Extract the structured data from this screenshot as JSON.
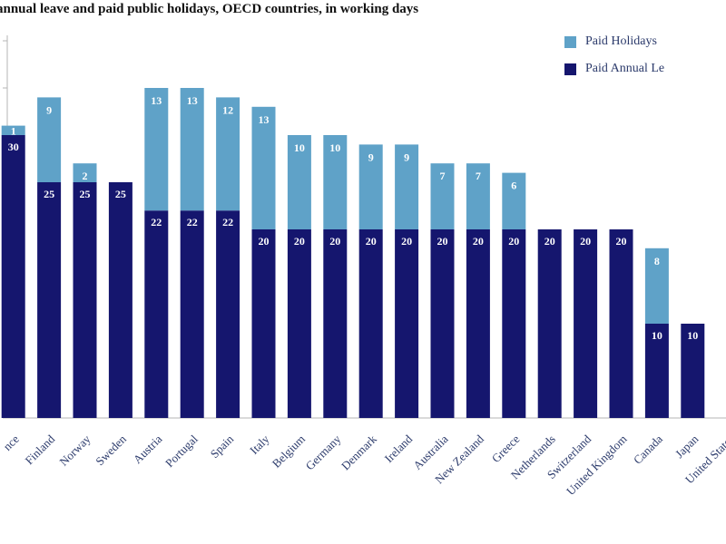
{
  "chart_data": {
    "type": "bar",
    "stacked": true,
    "title": "annual leave and paid public holidays, OECD countries, in working days",
    "categories": [
      "France",
      "Finland",
      "Norway",
      "Sweden",
      "Austria",
      "Portugal",
      "Spain",
      "Italy",
      "Belgium",
      "Germany",
      "Denmark",
      "Ireland",
      "Australia",
      "New Zealand",
      "Greece",
      "Netherlands",
      "Switzerland",
      "United Kingdom",
      "Canada",
      "Japan",
      "United States"
    ],
    "category_labels": [
      "nce",
      "Finland",
      "Norway",
      "Sweden",
      "Austria",
      "Portugal",
      "Spain",
      "Italy",
      "Belgium",
      "Germany",
      "Denmark",
      "Ireland",
      "Australia",
      "New Zealand",
      "Greece",
      "Netherlands",
      "Switzerland",
      "United Kingdom",
      "Canada",
      "Japan",
      "United States"
    ],
    "series": [
      {
        "name": "Paid Annual Leave",
        "values": [
          30,
          25,
          25,
          25,
          22,
          22,
          22,
          20,
          20,
          20,
          20,
          20,
          20,
          20,
          20,
          20,
          20,
          20,
          10,
          10,
          0
        ]
      },
      {
        "name": "Paid Holidays",
        "values": [
          1,
          9,
          2,
          0,
          13,
          13,
          12,
          13,
          10,
          10,
          9,
          9,
          7,
          7,
          6,
          0,
          0,
          0,
          8,
          0,
          0
        ]
      }
    ],
    "data_labels": [
      [
        "30",
        "25",
        "25",
        "25",
        "22",
        "22",
        "22",
        "20",
        "20",
        "20",
        "20",
        "20",
        "20",
        "20",
        "20",
        "20",
        "20",
        "20",
        "10",
        "10",
        ""
      ],
      [
        "1",
        "9",
        "2",
        "",
        "13",
        "13",
        "12",
        "13",
        "10",
        "10",
        "9",
        "9",
        "7",
        "7",
        "6",
        "",
        "",
        "",
        "8",
        "",
        ""
      ]
    ],
    "legend_entries": [
      "Paid Holidays",
      "Paid Annual Le"
    ],
    "legend_position": "top-right",
    "ylim": [
      0,
      40
    ],
    "grid": false
  },
  "colors": {
    "leave": "#15166e",
    "holidays": "#5fa2c8",
    "label": "#ffffff",
    "axis": "#b5b5b5",
    "text": "#2b3a6b"
  }
}
